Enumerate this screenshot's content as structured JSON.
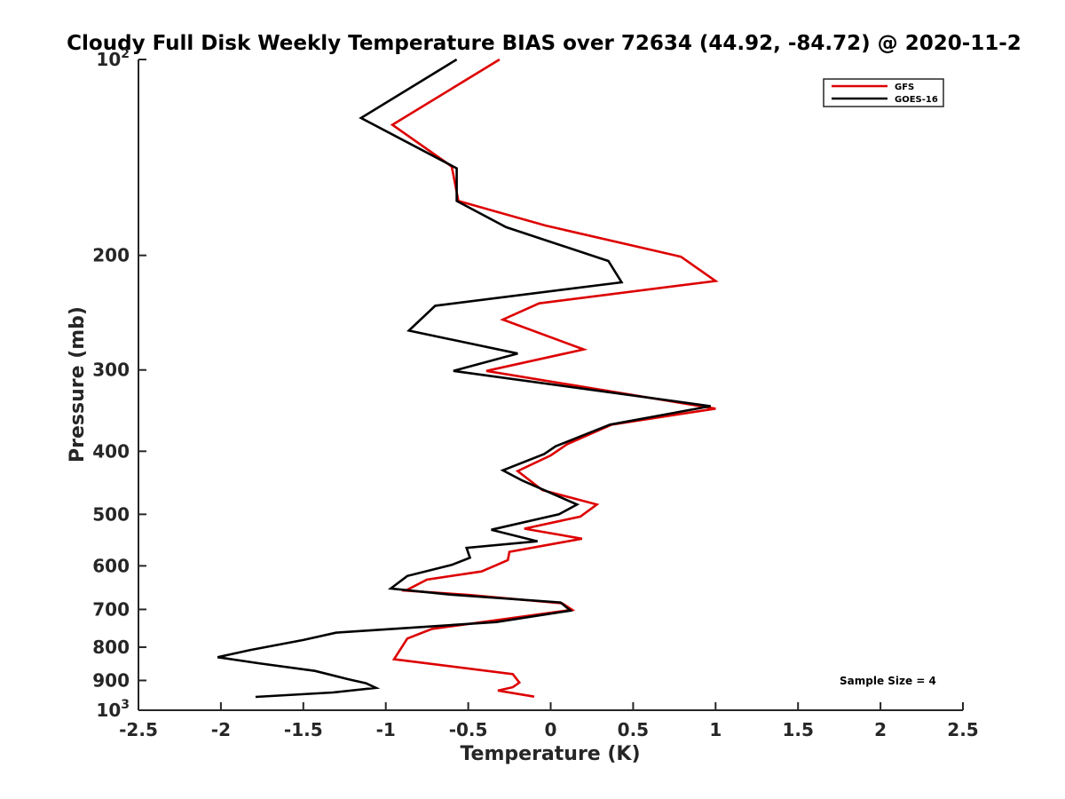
{
  "chart_data": {
    "type": "line",
    "title": "Cloudy Full Disk Weekly Temperature BIAS over 72634 (44.92, -84.72) @ 2020-11-2",
    "xlabel": "Temperature (K)",
    "ylabel": "Pressure (mb)",
    "xlim": [
      -2.5,
      2.5
    ],
    "ylim": [
      100,
      1000
    ],
    "yscale": "log",
    "y_reversed": true,
    "grid": false,
    "legend_position": "top-right",
    "x_ticks": [
      "-2.5",
      "-2",
      "-1.5",
      "-1",
      "-0.5",
      "0",
      "0.5",
      "1",
      "1.5",
      "2",
      "2.5"
    ],
    "x_tick_values": [
      -2.5,
      -2,
      -1.5,
      -1,
      -0.5,
      0,
      0.5,
      1,
      1.5,
      2,
      2.5
    ],
    "y_ticks": [
      {
        "value": 100,
        "base": "10",
        "exp": "2",
        "label": ""
      },
      {
        "value": 200,
        "label": "200"
      },
      {
        "value": 300,
        "label": "300"
      },
      {
        "value": 400,
        "label": "400"
      },
      {
        "value": 500,
        "label": "500"
      },
      {
        "value": 600,
        "label": "600"
      },
      {
        "value": 700,
        "label": "700"
      },
      {
        "value": 800,
        "label": "800"
      },
      {
        "value": 900,
        "label": "900"
      },
      {
        "value": 1000,
        "base": "10",
        "exp": "3",
        "label": ""
      }
    ],
    "annotation": "Sample Size = 4",
    "series": [
      {
        "name": "GFS",
        "color": "#dd0000",
        "points": [
          [
            -0.31,
            100
          ],
          [
            -0.96,
            126
          ],
          [
            -0.6,
            146
          ],
          [
            -0.56,
            165
          ],
          [
            -0.03,
            180
          ],
          [
            0.79,
            201
          ],
          [
            1.0,
            219
          ],
          [
            -0.07,
            237
          ],
          [
            -0.29,
            251
          ],
          [
            0.2,
            279
          ],
          [
            -0.39,
            301
          ],
          [
            1.0,
            344
          ],
          [
            0.37,
            364
          ],
          [
            0.1,
            390
          ],
          [
            0.0,
            406
          ],
          [
            -0.2,
            429
          ],
          [
            -0.05,
            459
          ],
          [
            0.28,
            483
          ],
          [
            0.18,
            504
          ],
          [
            -0.16,
            526
          ],
          [
            0.19,
            545
          ],
          [
            -0.25,
            571
          ],
          [
            -0.26,
            588
          ],
          [
            -0.42,
            612
          ],
          [
            -0.75,
            630
          ],
          [
            -0.88,
            655
          ],
          [
            -0.5,
            665
          ],
          [
            0.07,
            685
          ],
          [
            0.13,
            701
          ],
          [
            -0.72,
            750
          ],
          [
            -0.87,
            776
          ],
          [
            -0.95,
            835
          ],
          [
            -0.23,
            880
          ],
          [
            -0.19,
            907
          ],
          [
            -0.23,
            922
          ],
          [
            -0.32,
            933
          ],
          [
            -0.1,
            953
          ]
        ]
      },
      {
        "name": "GOES-16",
        "color": "#000000",
        "points": [
          [
            -0.57,
            100
          ],
          [
            -1.15,
            123
          ],
          [
            -0.57,
            147
          ],
          [
            -0.57,
            165
          ],
          [
            -0.27,
            181
          ],
          [
            0.35,
            204
          ],
          [
            0.43,
            220
          ],
          [
            -0.7,
            239
          ],
          [
            -0.86,
            261
          ],
          [
            -0.2,
            283
          ],
          [
            -0.59,
            301
          ],
          [
            0.97,
            341
          ],
          [
            0.36,
            364
          ],
          [
            0.03,
            393
          ],
          [
            -0.04,
            404
          ],
          [
            -0.29,
            428
          ],
          [
            -0.17,
            444
          ],
          [
            0.16,
            483
          ],
          [
            0.05,
            500
          ],
          [
            -0.36,
            528
          ],
          [
            -0.08,
            550
          ],
          [
            -0.51,
            563
          ],
          [
            -0.49,
            583
          ],
          [
            -0.6,
            598
          ],
          [
            -0.87,
            622
          ],
          [
            -0.97,
            650
          ],
          [
            -0.62,
            664
          ],
          [
            0.06,
            683
          ],
          [
            0.12,
            703
          ],
          [
            -0.33,
            732
          ],
          [
            -1.3,
            760
          ],
          [
            -1.5,
            780
          ],
          [
            -1.82,
            808
          ],
          [
            -2.02,
            829
          ],
          [
            -1.77,
            847
          ],
          [
            -1.43,
            870
          ],
          [
            -1.23,
            896
          ],
          [
            -1.12,
            909
          ],
          [
            -1.06,
            924
          ],
          [
            -1.32,
            939
          ],
          [
            -1.79,
            954
          ]
        ]
      }
    ]
  }
}
